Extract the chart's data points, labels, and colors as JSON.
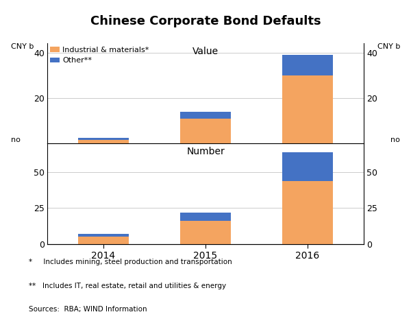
{
  "title": "Chinese Corporate Bond Defaults",
  "years": [
    "2014",
    "2015",
    "2016"
  ],
  "value_industrial": [
    1.5,
    11.0,
    30.0
  ],
  "value_other": [
    1.0,
    3.0,
    9.0
  ],
  "number_industrial": [
    5,
    16,
    44
  ],
  "number_other": [
    2,
    6,
    20
  ],
  "color_industrial": "#F4A460",
  "color_other": "#4472C4",
  "value_label_left": "CNY b",
  "value_label_right": "CNY b",
  "number_label_left": "no",
  "number_label_right": "no",
  "value_panel_label": "Value",
  "number_panel_label": "Number",
  "value_yticks": [
    20,
    40
  ],
  "value_ylim": [
    0,
    44
  ],
  "number_yticks": [
    0,
    25,
    50
  ],
  "number_ylim": [
    0,
    70
  ],
  "legend_industrial": "Industrial & materials*",
  "legend_other": "Other**",
  "footnote1": "*     Includes mining, steel production and transportation",
  "footnote2": "**   Includes IT, real estate, retail and utilities & energy",
  "footnote3": "Sources:  RBA; WIND Information",
  "bar_width": 0.5
}
